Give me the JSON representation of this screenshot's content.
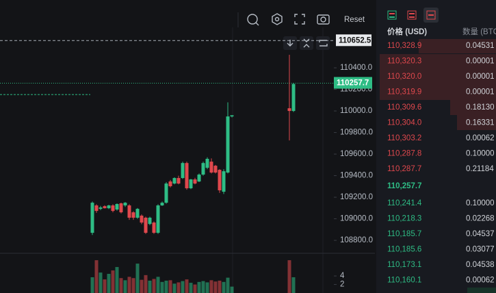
{
  "toolbar": {
    "reset": "Reset"
  },
  "chart": {
    "type": "candlestick",
    "candles": [
      [
        108870,
        109160,
        108850,
        109149
      ],
      [
        109124,
        109135,
        109055,
        109073
      ],
      [
        109092,
        109120,
        109080,
        109105
      ],
      [
        109117,
        109125,
        109095,
        109098
      ],
      [
        109098,
        109130,
        109090,
        109124
      ],
      [
        109124,
        109135,
        109060,
        109073
      ],
      [
        109086,
        109143,
        109075,
        109137
      ],
      [
        109143,
        109150,
        109050,
        109060
      ],
      [
        109124,
        109155,
        109110,
        109149
      ],
      [
        109124,
        109135,
        108990,
        109010
      ],
      [
        109060,
        109070,
        108990,
        109010
      ],
      [
        109010,
        109100,
        109000,
        109092
      ],
      [
        109029,
        109040,
        108950,
        108965
      ],
      [
        109010,
        109020,
        108860,
        108870
      ],
      [
        108952,
        109020,
        108940,
        109010
      ],
      [
        108965,
        108975,
        108860,
        108870
      ],
      [
        108870,
        109135,
        108860,
        109124
      ],
      [
        109124,
        109160,
        109120,
        109149
      ],
      [
        109149,
        109340,
        109140,
        109327
      ],
      [
        109346,
        109360,
        109290,
        109302
      ],
      [
        109327,
        109385,
        109320,
        109378
      ],
      [
        109378,
        109400,
        109320,
        109327
      ],
      [
        109378,
        109530,
        109370,
        109517
      ],
      [
        109517,
        109530,
        109270,
        109283
      ],
      [
        109283,
        109370,
        109275,
        109365
      ],
      [
        109365,
        109380,
        109320,
        109327
      ],
      [
        109346,
        109420,
        109340,
        109410
      ],
      [
        109410,
        109530,
        109400,
        109517
      ],
      [
        109473,
        109570,
        109460,
        109556
      ],
      [
        109530,
        109560,
        109420,
        109429
      ],
      [
        109492,
        109500,
        109420,
        109429
      ],
      [
        109454,
        109460,
        109240,
        109264
      ],
      [
        109251,
        109460,
        109230,
        109441
      ],
      [
        109429,
        110080,
        109420,
        109949
      ],
      [
        109949,
        109960,
        109940,
        109960
      ],
      null,
      null,
      null,
      null,
      null,
      null,
      null,
      null,
      null,
      null,
      null,
      null,
      null,
      [
        110025,
        110521,
        109727,
        110000
      ],
      [
        110000,
        110260,
        109990,
        110250
      ]
    ],
    "volumes": [
      3.7,
      7.7,
      4.8,
      3.2,
      4.5,
      5.3,
      6.1,
      3.5,
      3.0,
      3.8,
      3.5,
      6.9,
      3.1,
      4.2,
      2.9,
      3.3,
      3.8,
      2.6,
      2.9,
      3.0,
      2.2,
      2.5,
      2.8,
      3.2,
      2.4,
      2.0,
      2.6,
      2.8,
      2.5,
      3.0,
      2.7,
      2.9,
      2.6,
      3.6,
      1.5,
      null,
      null,
      null,
      null,
      null,
      null,
      null,
      null,
      null,
      null,
      null,
      null,
      null,
      7.7,
      3.7
    ],
    "ylim": [
      108680,
      110775
    ],
    "yticks": [
      {
        "value": 108800,
        "label": "108800.0"
      },
      {
        "value": 109000,
        "label": "109000.0"
      },
      {
        "value": 109200,
        "label": "109200.0"
      },
      {
        "value": 109400,
        "label": "109400.0"
      },
      {
        "value": 109600,
        "label": "109600.0"
      },
      {
        "value": 109800,
        "label": "109800.0"
      },
      {
        "value": 110000,
        "label": "110000.0"
      },
      {
        "value": 110200,
        "label": "110200.0"
      },
      {
        "value": 110400,
        "label": "110400.0"
      }
    ],
    "volume_ylim": [
      0,
      9
    ],
    "volume_yticks": [
      2,
      4
    ],
    "marker_price": {
      "value": 110652.5,
      "label": "110652.5"
    },
    "last_price": {
      "value": 110257.7,
      "label": "110257.7"
    },
    "order_line": 110152,
    "up_color": "#2ebd85",
    "down_color": "#e0484d"
  },
  "order_book": {
    "price_header": "价格 (USD)",
    "qty_header": "数量 (BTC",
    "asks": [
      [
        "110,328.9",
        "0.04531"
      ],
      [
        "110,320.3",
        "0.00001"
      ],
      [
        "110,320.0",
        "0.00001"
      ],
      [
        "110,319.9",
        "0.00001"
      ],
      [
        "110,309.6",
        "0.18130"
      ],
      [
        "110,304.0",
        "0.16331"
      ],
      [
        "110,303.2",
        "0.00062"
      ],
      [
        "110,287.8",
        "0.10000"
      ],
      [
        "110,287.7",
        "0.21184"
      ]
    ],
    "mid_price": "110,257.7",
    "bids": [
      [
        "110,241.4",
        "0.10000"
      ],
      [
        "110,218.3",
        "0.02268"
      ],
      [
        "110,185.7",
        "0.04537"
      ],
      [
        "110,185.6",
        "0.03077"
      ],
      [
        "110,173.1",
        "0.04538"
      ],
      [
        "110,160.1",
        "0.00062"
      ]
    ]
  }
}
